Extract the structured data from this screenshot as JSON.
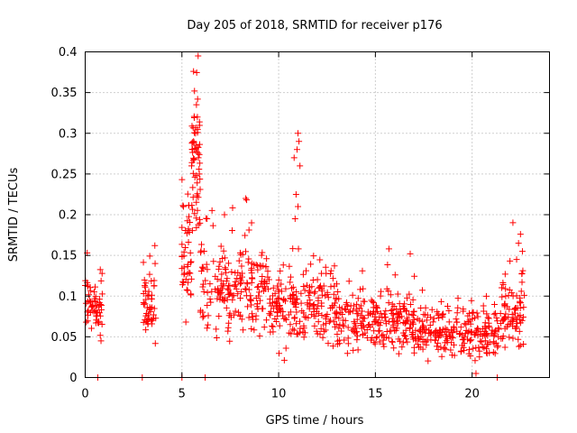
{
  "chart_data": {
    "type": "scatter",
    "title": "Day 205 of 2018, SRMTID for receiver p176",
    "xlabel": "GPS time / hours",
    "ylabel": "SRMTID / TECUs",
    "xlim": [
      0,
      24
    ],
    "ylim": [
      0,
      0.4
    ],
    "grid": true,
    "marker": "+",
    "color": "#ff0000",
    "xticks": [
      0,
      5,
      10,
      15,
      20
    ],
    "xtick_labels": [
      "0",
      "5",
      "10",
      "15",
      "20"
    ],
    "yticks": [
      0,
      0.05,
      0.1,
      0.15,
      0.2,
      0.25,
      0.3,
      0.35,
      0.4
    ],
    "ytick_labels": [
      "0",
      "0.05",
      "0.1",
      "0.15",
      "0.2",
      "0.25",
      "0.3",
      "0.35",
      "0.4"
    ],
    "series": [
      {
        "name": "SRMTID",
        "segments": [
          {
            "x0": 0.0,
            "x1": 0.9,
            "points": 60,
            "base": 0.085,
            "spread": 0.025
          },
          {
            "x0": 3.0,
            "x1": 3.65,
            "points": 50,
            "base": 0.09,
            "spread": 0.03
          },
          {
            "x0": 5.0,
            "x1": 5.5,
            "points": 45,
            "base": 0.15,
            "spread": 0.05
          },
          {
            "x0": 5.5,
            "x1": 5.95,
            "points": 55,
            "base": 0.25,
            "spread": 0.06
          },
          {
            "x0": 5.95,
            "x1": 9.5,
            "points": 200,
            "base": 0.105,
            "spread": 0.035
          },
          {
            "x0": 9.5,
            "x1": 13.0,
            "points": 200,
            "base": 0.085,
            "spread": 0.03
          },
          {
            "x0": 13.0,
            "x1": 17.0,
            "points": 230,
            "base": 0.07,
            "spread": 0.025
          },
          {
            "x0": 17.0,
            "x1": 21.5,
            "points": 240,
            "base": 0.055,
            "spread": 0.02
          },
          {
            "x0": 21.5,
            "x1": 22.7,
            "points": 80,
            "base": 0.08,
            "spread": 0.03
          }
        ],
        "highlights": [
          [
            5.6,
            0.376
          ],
          [
            5.65,
            0.352
          ],
          [
            5.75,
            0.335
          ],
          [
            5.8,
            0.32
          ],
          [
            5.7,
            0.3
          ],
          [
            5.6,
            0.29
          ],
          [
            5.55,
            0.28
          ],
          [
            5.85,
            0.27
          ],
          [
            5.5,
            0.26
          ],
          [
            5.9,
            0.25
          ],
          [
            11.0,
            0.3
          ],
          [
            11.05,
            0.29
          ],
          [
            10.95,
            0.28
          ],
          [
            10.8,
            0.27
          ],
          [
            11.1,
            0.26
          ],
          [
            10.9,
            0.225
          ],
          [
            11.0,
            0.21
          ],
          [
            10.85,
            0.195
          ],
          [
            8.3,
            0.22
          ],
          [
            7.2,
            0.2
          ],
          [
            6.3,
            0.195
          ],
          [
            8.6,
            0.19
          ],
          [
            0.1,
            0.153
          ],
          [
            3.6,
            0.162
          ],
          [
            15.7,
            0.158
          ],
          [
            16.8,
            0.152
          ],
          [
            22.5,
            0.176
          ],
          [
            22.4,
            0.165
          ],
          [
            22.6,
            0.155
          ],
          [
            22.3,
            0.145
          ],
          [
            20.2,
            0.005
          ],
          [
            21.3,
            0.0
          ]
        ],
        "zeros": [
          0.65,
          2.95,
          5.0,
          6.2
        ]
      }
    ]
  }
}
